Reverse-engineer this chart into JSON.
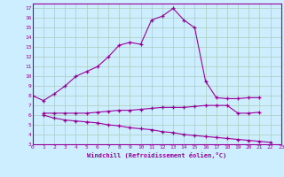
{
  "xlabel": "Windchill (Refroidissement éolien,°C)",
  "bg_color": "#cceeff",
  "line_color": "#990099",
  "grid_color": "#aaccbb",
  "line1_x": [
    0,
    1,
    2,
    3,
    4,
    5,
    6,
    7,
    8,
    9,
    10,
    11,
    12,
    13,
    14,
    15,
    16,
    17,
    18,
    19,
    20,
    21,
    22
  ],
  "line1_y": [
    8.0,
    7.5,
    8.2,
    9.0,
    10.0,
    10.5,
    11.0,
    12.0,
    13.2,
    13.5,
    13.3,
    15.8,
    16.2,
    17.0,
    15.8,
    15.0,
    9.5,
    7.8,
    7.7,
    7.7,
    7.8,
    7.8,
    null
  ],
  "line2_x": [
    1,
    2,
    3,
    4,
    5,
    6,
    7,
    8,
    9,
    10,
    11,
    12,
    13,
    14,
    15,
    16,
    17,
    18,
    19,
    20,
    21,
    22
  ],
  "line2_y": [
    6.2,
    6.2,
    6.2,
    6.2,
    6.2,
    6.3,
    6.4,
    6.5,
    6.5,
    6.6,
    6.7,
    6.8,
    6.8,
    6.8,
    6.9,
    7.0,
    7.0,
    7.0,
    6.2,
    6.2,
    6.3,
    null
  ],
  "line3_x": [
    1,
    2,
    3,
    4,
    5,
    6,
    7,
    8,
    9,
    10,
    11,
    12,
    13,
    14,
    15,
    16,
    17,
    18,
    19,
    20,
    21,
    22
  ],
  "line3_y": [
    6.0,
    5.7,
    5.5,
    5.4,
    5.3,
    5.2,
    5.0,
    4.9,
    4.7,
    4.6,
    4.5,
    4.3,
    4.2,
    4.0,
    3.9,
    3.8,
    3.7,
    3.6,
    3.5,
    3.4,
    3.3,
    3.2
  ],
  "xlim": [
    0,
    23
  ],
  "ylim": [
    3,
    17.5
  ],
  "yticks": [
    3,
    4,
    5,
    6,
    7,
    8,
    9,
    10,
    11,
    12,
    13,
    14,
    15,
    16,
    17
  ],
  "xticks": [
    0,
    1,
    2,
    3,
    4,
    5,
    6,
    7,
    8,
    9,
    10,
    11,
    12,
    13,
    14,
    15,
    16,
    17,
    18,
    19,
    20,
    21,
    22,
    23
  ]
}
